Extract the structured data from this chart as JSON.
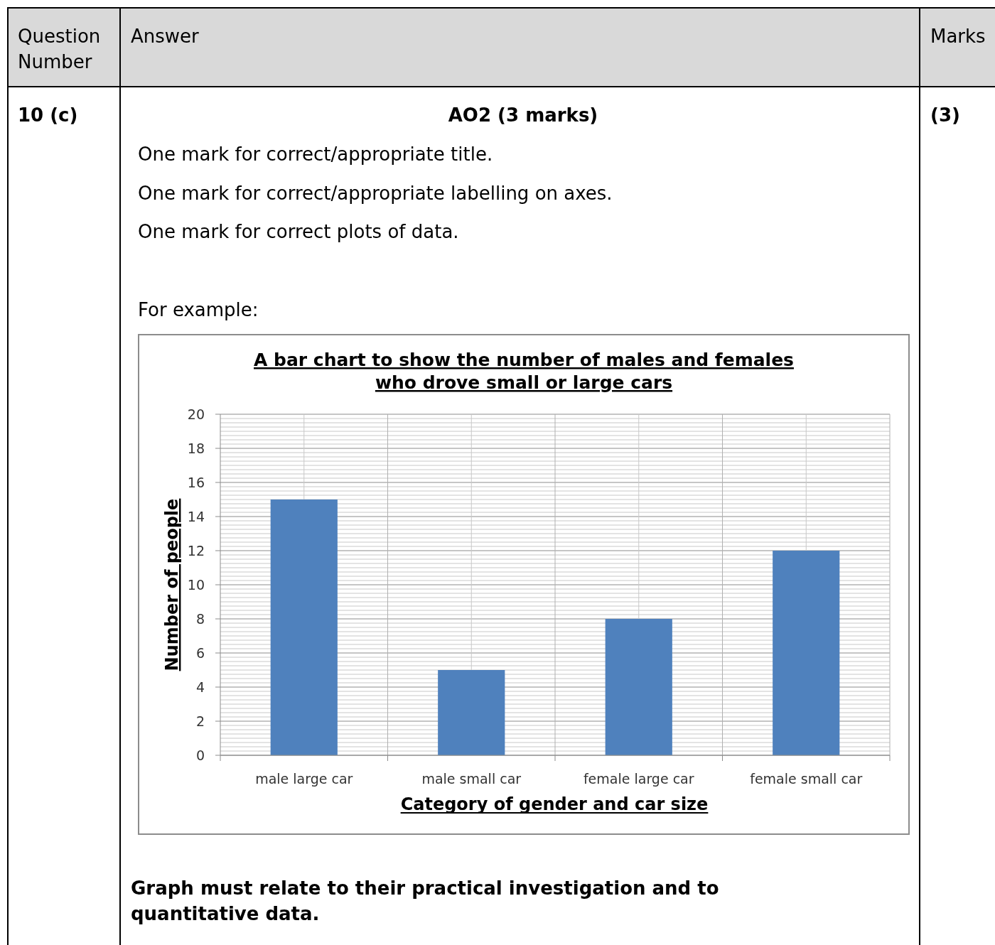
{
  "chart_data": {
    "type": "bar",
    "title": "A bar chart to show the number of males and females who drove small or large cars",
    "xlabel": "Category of gender and car size",
    "ylabel": "Number of people",
    "categories": [
      "male large car",
      "male small car",
      "female large car",
      "female small car"
    ],
    "values": [
      15,
      5,
      8,
      12
    ],
    "color": "#4f81bd",
    "ylim": [
      0,
      20
    ],
    "yticks": [
      0,
      2,
      4,
      6,
      8,
      10,
      12,
      14,
      16,
      18,
      20
    ],
    "grid": true,
    "annotations": [
      "Question Number",
      "Answer",
      "Marks",
      "10 (c)",
      "AO2 (3 marks)",
      "(3)",
      "One mark for correct/appropriate title.",
      "One mark for correct/appropriate labelling on axes.",
      "One mark for correct plots of data.",
      "For example:",
      "Graph must relate to their practical investigation and to quantitative data."
    ]
  }
}
